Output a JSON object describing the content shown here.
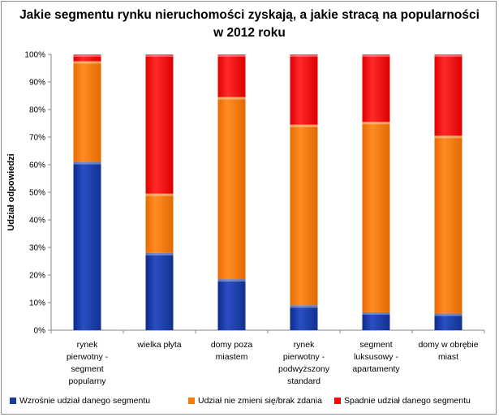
{
  "chart_data": {
    "type": "bar",
    "stacked": true,
    "percent_stacked": true,
    "title": "Jakie segmentu rynku nieruchomości zyskają, a jakie stracą na popularności w 2012 roku",
    "title_lines": [
      "Jakie segmentu rynku nieruchomości zyskają, a jakie stracą na popularności",
      "w 2012 roku"
    ],
    "xlabel": "",
    "ylabel": "Udział odpowiedzi",
    "ylim": [
      0,
      100
    ],
    "yticks": [
      "0%",
      "10%",
      "20%",
      "30%",
      "40%",
      "50%",
      "60%",
      "70%",
      "80%",
      "90%",
      "100%"
    ],
    "grid": false,
    "legend_position": "bottom",
    "categories": [
      [
        "rynek",
        "pierwotny -",
        "segment",
        "popularny"
      ],
      [
        "wielka płyta"
      ],
      [
        "domy poza",
        "miastem"
      ],
      [
        "rynek",
        "pierwotny -",
        "podwyższony",
        "standard"
      ],
      [
        "segment",
        "luksusowy -",
        "apartamenty"
      ],
      [
        "domy w obrębie",
        "miast"
      ]
    ],
    "series": [
      {
        "name": "Wzrośnie udział danego segmentu",
        "color": "#1a3aa8",
        "values": [
          61,
          28,
          18.5,
          9,
          6.5,
          6
        ]
      },
      {
        "name": "Udział nie zmieni się/brak zdania",
        "color": "#f57a0c",
        "values": [
          36.5,
          21.5,
          66,
          65.5,
          69,
          64.5
        ]
      },
      {
        "name": "Spadnie udział danego segmentu",
        "color": "#f00a0a",
        "values": [
          2.5,
          50.5,
          15.5,
          25.5,
          24.5,
          29.5
        ]
      }
    ]
  }
}
